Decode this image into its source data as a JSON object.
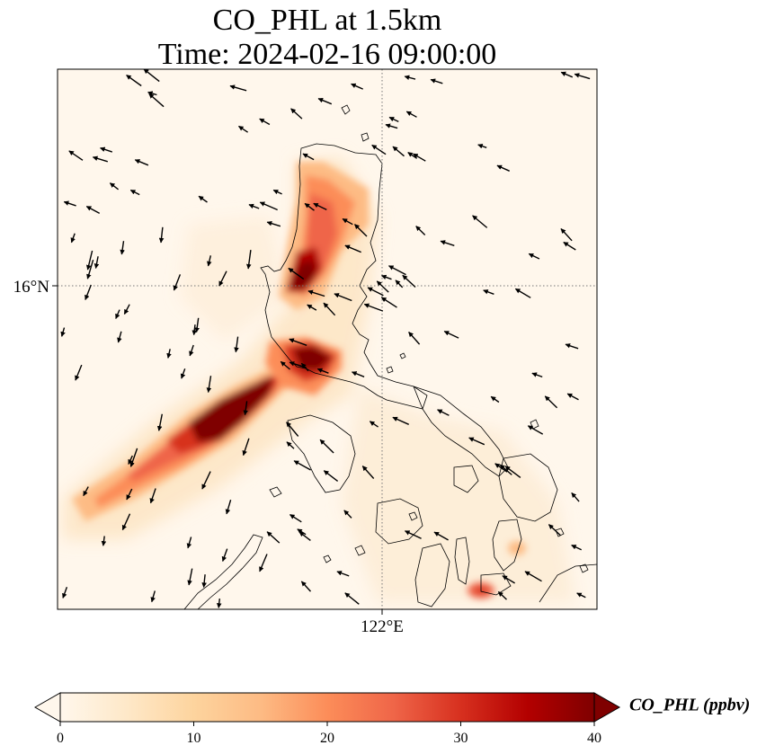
{
  "figure": {
    "title_line1": "CO_PHL at 1.5km",
    "title_line2": "Time: 2024-02-16 09:00:00"
  },
  "map": {
    "projection": "plate carree",
    "field": "CO_PHL",
    "level": "1.5km",
    "gridlines": {
      "style": "dotted",
      "lat_label": "16°N",
      "lon_label": "122°E"
    },
    "colormap": "OrRd",
    "features": [
      "coastlines",
      "wind-vectors",
      "concentration-plume"
    ]
  },
  "colorbar": {
    "label": "CO_PHL (ppbv)",
    "ticks": [
      "0",
      "10",
      "20",
      "30",
      "40"
    ],
    "min": 0,
    "max": 40,
    "extend": "both",
    "colors": [
      "#fff7ec",
      "#fee8c8",
      "#fdd49e",
      "#fdbb84",
      "#fc8d59",
      "#ef6548",
      "#d7301f",
      "#b30000",
      "#7f0000"
    ]
  }
}
